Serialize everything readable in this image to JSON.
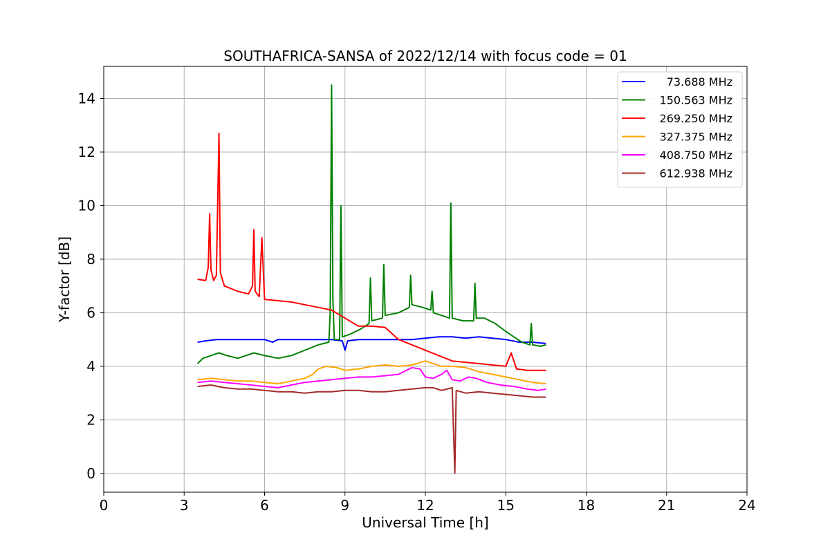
{
  "chart_data": {
    "type": "line",
    "title": "SOUTHAFRICA-SANSA of 2022/12/14 with focus code = 01",
    "xlabel": "Universal Time [h]",
    "ylabel": "Y-factor [dB]",
    "xlim": [
      0,
      24
    ],
    "ylim": [
      -0.7,
      15.2
    ],
    "xticks": [
      0,
      3,
      6,
      9,
      12,
      15,
      18,
      21,
      24
    ],
    "yticks": [
      0,
      2,
      4,
      6,
      8,
      10,
      12,
      14
    ],
    "grid": true,
    "legend_position": "top-right",
    "series": [
      {
        "name": "73.688 MHz",
        "color": "#0000ff",
        "points": [
          [
            3.5,
            4.9
          ],
          [
            3.8,
            4.95
          ],
          [
            4.2,
            5.0
          ],
          [
            4.6,
            5.0
          ],
          [
            5.0,
            5.0
          ],
          [
            5.5,
            5.0
          ],
          [
            6.0,
            5.0
          ],
          [
            6.3,
            4.9
          ],
          [
            6.5,
            5.0
          ],
          [
            7.0,
            5.0
          ],
          [
            7.5,
            5.0
          ],
          [
            8.0,
            5.0
          ],
          [
            8.5,
            5.0
          ],
          [
            8.9,
            4.95
          ],
          [
            9.0,
            4.6
          ],
          [
            9.1,
            4.95
          ],
          [
            9.5,
            5.0
          ],
          [
            10.0,
            5.0
          ],
          [
            10.5,
            5.0
          ],
          [
            11.0,
            5.0
          ],
          [
            11.5,
            5.0
          ],
          [
            12.0,
            5.05
          ],
          [
            12.5,
            5.1
          ],
          [
            13.0,
            5.1
          ],
          [
            13.5,
            5.05
          ],
          [
            14.0,
            5.1
          ],
          [
            14.5,
            5.05
          ],
          [
            15.0,
            5.0
          ],
          [
            15.5,
            4.9
          ],
          [
            16.0,
            4.9
          ],
          [
            16.5,
            4.85
          ]
        ]
      },
      {
        "name": "150.563 MHz",
        "color": "#008000",
        "points": [
          [
            3.5,
            4.1
          ],
          [
            3.7,
            4.3
          ],
          [
            4.0,
            4.4
          ],
          [
            4.3,
            4.5
          ],
          [
            4.6,
            4.4
          ],
          [
            5.0,
            4.3
          ],
          [
            5.3,
            4.4
          ],
          [
            5.6,
            4.5
          ],
          [
            6.0,
            4.4
          ],
          [
            6.5,
            4.3
          ],
          [
            7.0,
            4.4
          ],
          [
            7.5,
            4.6
          ],
          [
            8.0,
            4.8
          ],
          [
            8.4,
            4.9
          ],
          [
            8.45,
            6.0
          ],
          [
            8.5,
            14.5
          ],
          [
            8.55,
            6.5
          ],
          [
            8.6,
            5.0
          ],
          [
            8.8,
            5.0
          ],
          [
            8.85,
            10.0
          ],
          [
            8.9,
            5.1
          ],
          [
            9.2,
            5.2
          ],
          [
            9.6,
            5.4
          ],
          [
            9.9,
            5.6
          ],
          [
            9.95,
            7.3
          ],
          [
            10.0,
            5.7
          ],
          [
            10.4,
            5.8
          ],
          [
            10.45,
            7.8
          ],
          [
            10.5,
            5.9
          ],
          [
            11.0,
            6.0
          ],
          [
            11.4,
            6.2
          ],
          [
            11.45,
            7.4
          ],
          [
            11.5,
            6.3
          ],
          [
            11.9,
            6.2
          ],
          [
            12.2,
            6.1
          ],
          [
            12.25,
            6.8
          ],
          [
            12.3,
            6.0
          ],
          [
            12.6,
            5.9
          ],
          [
            12.9,
            5.8
          ],
          [
            12.95,
            10.1
          ],
          [
            13.0,
            5.8
          ],
          [
            13.4,
            5.7
          ],
          [
            13.8,
            5.7
          ],
          [
            13.85,
            7.1
          ],
          [
            13.9,
            5.8
          ],
          [
            14.2,
            5.8
          ],
          [
            14.6,
            5.6
          ],
          [
            15.0,
            5.3
          ],
          [
            15.3,
            5.1
          ],
          [
            15.6,
            4.9
          ],
          [
            15.9,
            4.8
          ],
          [
            15.95,
            5.6
          ],
          [
            16.0,
            4.8
          ],
          [
            16.3,
            4.75
          ],
          [
            16.5,
            4.8
          ]
        ]
      },
      {
        "name": "269.250 MHz",
        "color": "#ff0000",
        "points": [
          [
            3.5,
            7.25
          ],
          [
            3.8,
            7.2
          ],
          [
            3.9,
            7.7
          ],
          [
            3.95,
            9.7
          ],
          [
            4.0,
            7.6
          ],
          [
            4.1,
            7.2
          ],
          [
            4.2,
            7.4
          ],
          [
            4.3,
            12.7
          ],
          [
            4.35,
            7.5
          ],
          [
            4.5,
            7.0
          ],
          [
            5.0,
            6.8
          ],
          [
            5.4,
            6.7
          ],
          [
            5.55,
            7.0
          ],
          [
            5.6,
            9.1
          ],
          [
            5.65,
            6.8
          ],
          [
            5.8,
            6.6
          ],
          [
            5.9,
            8.8
          ],
          [
            6.0,
            6.5
          ],
          [
            6.5,
            6.45
          ],
          [
            7.0,
            6.4
          ],
          [
            7.5,
            6.3
          ],
          [
            8.0,
            6.2
          ],
          [
            8.5,
            6.1
          ],
          [
            9.0,
            5.8
          ],
          [
            9.5,
            5.5
          ],
          [
            10.0,
            5.5
          ],
          [
            10.5,
            5.45
          ],
          [
            11.0,
            5.0
          ],
          [
            11.5,
            4.8
          ],
          [
            12.0,
            4.6
          ],
          [
            12.5,
            4.4
          ],
          [
            13.0,
            4.2
          ],
          [
            13.5,
            4.15
          ],
          [
            14.0,
            4.1
          ],
          [
            14.5,
            4.05
          ],
          [
            15.0,
            4.0
          ],
          [
            15.2,
            4.5
          ],
          [
            15.4,
            3.9
          ],
          [
            15.8,
            3.85
          ],
          [
            16.2,
            3.85
          ],
          [
            16.5,
            3.85
          ]
        ]
      },
      {
        "name": "327.375 MHz",
        "color": "#ffa500",
        "points": [
          [
            3.5,
            3.5
          ],
          [
            4.0,
            3.55
          ],
          [
            4.5,
            3.5
          ],
          [
            5.0,
            3.45
          ],
          [
            5.5,
            3.45
          ],
          [
            6.0,
            3.4
          ],
          [
            6.5,
            3.35
          ],
          [
            7.0,
            3.45
          ],
          [
            7.5,
            3.55
          ],
          [
            7.8,
            3.7
          ],
          [
            8.0,
            3.9
          ],
          [
            8.3,
            4.0
          ],
          [
            8.7,
            3.95
          ],
          [
            9.0,
            3.85
          ],
          [
            9.5,
            3.9
          ],
          [
            10.0,
            4.0
          ],
          [
            10.5,
            4.05
          ],
          [
            11.0,
            4.0
          ],
          [
            11.5,
            4.05
          ],
          [
            12.0,
            4.2
          ],
          [
            12.3,
            4.1
          ],
          [
            12.6,
            4.0
          ],
          [
            13.0,
            4.0
          ],
          [
            13.5,
            3.95
          ],
          [
            14.0,
            3.8
          ],
          [
            14.5,
            3.7
          ],
          [
            15.0,
            3.6
          ],
          [
            15.5,
            3.5
          ],
          [
            16.0,
            3.4
          ],
          [
            16.5,
            3.35
          ]
        ]
      },
      {
        "name": "408.750 MHz",
        "color": "#ff00ff",
        "points": [
          [
            3.5,
            3.4
          ],
          [
            4.0,
            3.45
          ],
          [
            4.5,
            3.4
          ],
          [
            5.0,
            3.35
          ],
          [
            5.5,
            3.3
          ],
          [
            6.0,
            3.25
          ],
          [
            6.5,
            3.2
          ],
          [
            7.0,
            3.3
          ],
          [
            7.5,
            3.4
          ],
          [
            8.0,
            3.45
          ],
          [
            8.5,
            3.5
          ],
          [
            9.0,
            3.55
          ],
          [
            9.5,
            3.6
          ],
          [
            10.0,
            3.6
          ],
          [
            10.5,
            3.65
          ],
          [
            11.0,
            3.7
          ],
          [
            11.5,
            3.95
          ],
          [
            11.8,
            3.9
          ],
          [
            12.0,
            3.6
          ],
          [
            12.3,
            3.55
          ],
          [
            12.6,
            3.7
          ],
          [
            12.8,
            3.85
          ],
          [
            13.0,
            3.5
          ],
          [
            13.3,
            3.45
          ],
          [
            13.6,
            3.6
          ],
          [
            13.9,
            3.55
          ],
          [
            14.3,
            3.4
          ],
          [
            14.8,
            3.3
          ],
          [
            15.3,
            3.25
          ],
          [
            15.8,
            3.15
          ],
          [
            16.2,
            3.1
          ],
          [
            16.5,
            3.15
          ]
        ]
      },
      {
        "name": "612.938 MHz",
        "color": "#a52a2a",
        "points": [
          [
            3.5,
            3.25
          ],
          [
            4.0,
            3.3
          ],
          [
            4.5,
            3.2
          ],
          [
            5.0,
            3.15
          ],
          [
            5.5,
            3.15
          ],
          [
            6.0,
            3.1
          ],
          [
            6.5,
            3.05
          ],
          [
            7.0,
            3.05
          ],
          [
            7.5,
            3.0
          ],
          [
            8.0,
            3.05
          ],
          [
            8.5,
            3.05
          ],
          [
            9.0,
            3.1
          ],
          [
            9.5,
            3.1
          ],
          [
            10.0,
            3.05
          ],
          [
            10.5,
            3.05
          ],
          [
            11.0,
            3.1
          ],
          [
            11.5,
            3.15
          ],
          [
            12.0,
            3.2
          ],
          [
            12.3,
            3.2
          ],
          [
            12.6,
            3.1
          ],
          [
            13.0,
            3.2
          ],
          [
            13.1,
            0.0
          ],
          [
            13.15,
            3.1
          ],
          [
            13.5,
            3.0
          ],
          [
            14.0,
            3.05
          ],
          [
            14.5,
            3.0
          ],
          [
            15.0,
            2.95
          ],
          [
            15.5,
            2.9
          ],
          [
            16.0,
            2.85
          ],
          [
            16.5,
            2.85
          ]
        ]
      }
    ]
  }
}
